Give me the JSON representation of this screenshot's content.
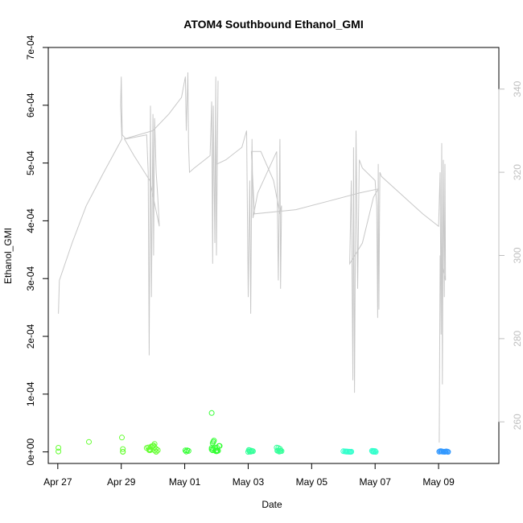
{
  "chart_data": {
    "type": "scatter",
    "title": "ATOM4 Southbound Ethanol_GMI",
    "xlabel": "Date",
    "ylabel": "Ethanol_GMI",
    "xlim": [
      -0.3,
      13.9
    ],
    "ylim": [
      -2e-05,
      0.0007
    ],
    "y2lim": [
      250,
      350
    ],
    "x_origin_label": "Apr 27",
    "x_ticks": [
      {
        "x": 0,
        "label": "Apr 27"
      },
      {
        "x": 2,
        "label": "Apr 29"
      },
      {
        "x": 4,
        "label": "May 01"
      },
      {
        "x": 6,
        "label": "May 03"
      },
      {
        "x": 8,
        "label": "May 05"
      },
      {
        "x": 10,
        "label": "May 07"
      },
      {
        "x": 12,
        "label": "May 09"
      }
    ],
    "y_ticks": [
      {
        "y": 0,
        "label": "0e+00"
      },
      {
        "y": 0.0001,
        "label": "1e-04"
      },
      {
        "y": 0.0002,
        "label": "2e-04"
      },
      {
        "y": 0.0003,
        "label": "3e-04"
      },
      {
        "y": 0.0004,
        "label": "4e-04"
      },
      {
        "y": 0.0005,
        "label": "5e-04"
      },
      {
        "y": 0.0006,
        "label": "6e-04"
      },
      {
        "y": 0.0007,
        "label": "7e-04"
      }
    ],
    "y2_ticks": [
      {
        "y": 260,
        "label": "260"
      },
      {
        "y": 280,
        "label": "280"
      },
      {
        "y": 300,
        "label": "300"
      },
      {
        "y": 320,
        "label": "320"
      },
      {
        "y": 340,
        "label": "340"
      }
    ],
    "series": [
      {
        "color": "#c8c8c8",
        "type": "line",
        "axis": "right",
        "points": [
          [
            0.02,
            286
          ],
          [
            0.05,
            294
          ],
          [
            0.45,
            303
          ],
          [
            0.9,
            312
          ],
          [
            1.45,
            320
          ],
          [
            2.02,
            328
          ],
          [
            1.98,
            336
          ],
          [
            2.0,
            343
          ],
          [
            2.03,
            329
          ],
          [
            2.15,
            328
          ],
          [
            2.8,
            329
          ],
          [
            2.85,
            320
          ],
          [
            2.88,
            276
          ],
          [
            2.92,
            336
          ],
          [
            2.95,
            290
          ],
          [
            3.0,
            334
          ],
          [
            3.02,
            300
          ],
          [
            3.05,
            333
          ],
          [
            3.1,
            320
          ],
          [
            3.15,
            314
          ],
          [
            3.2,
            307
          ],
          [
            2.9,
            318
          ],
          [
            2.4,
            324
          ],
          [
            2.1,
            328
          ],
          [
            3.0,
            330
          ],
          [
            3.5,
            334
          ],
          [
            3.9,
            338
          ],
          [
            4.02,
            343
          ],
          [
            4.05,
            330
          ],
          [
            4.1,
            344
          ],
          [
            4.12,
            327
          ],
          [
            4.15,
            320
          ],
          [
            4.3,
            321
          ],
          [
            4.8,
            324
          ],
          [
            4.85,
            337
          ],
          [
            4.88,
            298
          ],
          [
            4.9,
            336
          ],
          [
            4.95,
            303
          ],
          [
            4.98,
            343
          ],
          [
            5.0,
            300
          ],
          [
            5.05,
            342
          ],
          [
            5.02,
            322
          ],
          [
            5.3,
            323
          ],
          [
            5.8,
            326
          ],
          [
            5.95,
            330
          ],
          [
            6.0,
            290
          ],
          [
            6.05,
            318
          ],
          [
            6.08,
            286
          ],
          [
            6.12,
            328
          ],
          [
            6.15,
            309
          ],
          [
            6.3,
            315
          ],
          [
            6.6,
            320
          ],
          [
            6.9,
            325
          ],
          [
            6.95,
            294
          ],
          [
            7.0,
            328
          ],
          [
            7.02,
            292
          ],
          [
            7.05,
            312
          ],
          [
            7.0,
            310
          ],
          [
            6.8,
            318
          ],
          [
            6.4,
            325
          ],
          [
            6.1,
            325
          ],
          [
            6.2,
            310
          ],
          [
            7.5,
            311
          ],
          [
            8.5,
            313
          ],
          [
            9.5,
            315
          ],
          [
            10.1,
            316
          ],
          [
            9.95,
            314
          ],
          [
            9.6,
            303
          ],
          [
            9.2,
            298
          ],
          [
            9.25,
            318
          ],
          [
            9.3,
            270
          ],
          [
            9.32,
            326
          ],
          [
            9.35,
            267
          ],
          [
            9.4,
            330
          ],
          [
            9.45,
            292
          ],
          [
            9.5,
            323
          ],
          [
            9.6,
            321
          ],
          [
            10.0,
            318
          ],
          [
            10.05,
            312
          ],
          [
            10.08,
            285
          ],
          [
            10.1,
            322
          ],
          [
            10.12,
            287
          ],
          [
            10.15,
            320
          ],
          [
            10.2,
            319
          ],
          [
            11.5,
            310
          ],
          [
            12.0,
            307
          ],
          [
            12.05,
            320
          ],
          [
            12.08,
            281
          ],
          [
            12.1,
            327
          ],
          [
            12.12,
            269
          ],
          [
            12.15,
            323
          ],
          [
            12.18,
            290
          ],
          [
            12.2,
            322
          ],
          [
            12.22,
            294
          ],
          [
            12.05,
            300
          ],
          [
            12.02,
            255
          ]
        ]
      },
      {
        "color": "#66ff33",
        "type": "points",
        "points": [
          [
            0.02,
            7.1e-06
          ],
          [
            0.02,
            7e-07
          ],
          [
            0.98,
            1.73e-05
          ],
          [
            2.02,
            2.49e-05
          ],
          [
            2.05,
            4.9e-06
          ],
          [
            2.05,
            3e-07
          ],
          [
            2.05,
            2e-07
          ],
          [
            2.8,
            6.7e-06
          ],
          [
            2.85,
            7.7e-06
          ],
          [
            2.88,
            4.7e-06
          ],
          [
            2.88,
            3.1e-06
          ],
          [
            2.9,
            3e-06
          ],
          [
            2.9,
            2.8e-06
          ],
          [
            2.92,
            3.2e-06
          ],
          [
            2.95,
            8.3e-06
          ],
          [
            2.95,
            9.7e-06
          ],
          [
            3.0,
            1.05e-05
          ],
          [
            3.02,
            1.1e-05
          ],
          [
            3.05,
            1.38e-05
          ],
          [
            3.05,
            8e-06
          ],
          [
            3.1,
            5e-06
          ],
          [
            3.15,
            3e-06
          ],
          [
            3.05,
            2.5e-06
          ],
          [
            3.1,
            6e-07
          ],
          [
            3.1,
            2e-07
          ]
        ]
      },
      {
        "color": "#33ff33",
        "type": "points",
        "points": [
          [
            4.02,
            2.5e-06
          ],
          [
            4.08,
            2.7e-06
          ],
          [
            4.12,
            1.7e-06
          ],
          [
            4.05,
            6e-07
          ],
          [
            4.85,
            4.3e-06
          ],
          [
            4.85,
            6.9e-06
          ],
          [
            4.88,
            2.8e-06
          ],
          [
            4.9,
            6e-06
          ],
          [
            4.9,
            1.75e-05
          ],
          [
            4.92,
            1.95e-05
          ],
          [
            4.95,
            7.5e-06
          ],
          [
            5.0,
            1e-06
          ],
          [
            5.02,
            7e-06
          ],
          [
            5.02,
            2.5e-06
          ],
          [
            5.05,
            2e-06
          ],
          [
            5.08,
            1.04e-05
          ],
          [
            5.1,
            1.03e-05
          ],
          [
            4.98,
            1.5e-06
          ],
          [
            5.02,
            1.6e-06
          ],
          [
            4.88,
            1.5e-05
          ],
          [
            4.85,
            6.73e-05
          ]
        ]
      },
      {
        "color": "#33ff99",
        "type": "points",
        "points": [
          [
            6.02,
            3.2e-06
          ],
          [
            6.05,
            2.8e-06
          ],
          [
            6.1,
            2.2e-06
          ],
          [
            6.12,
            1.5e-06
          ],
          [
            6.15,
            1.2e-06
          ],
          [
            6.05,
            5e-07
          ],
          [
            6.08,
            3e-07
          ],
          [
            6.0,
            1e-07
          ],
          [
            6.9,
            7.5e-06
          ],
          [
            6.95,
            6.8e-06
          ],
          [
            7.0,
            5.2e-06
          ],
          [
            6.92,
            2.1e-06
          ],
          [
            6.95,
            1.8e-06
          ],
          [
            7.0,
            1.7e-06
          ],
          [
            7.02,
            1.9e-06
          ],
          [
            7.05,
            1.5e-06
          ],
          [
            6.98,
            5e-07
          ]
        ]
      },
      {
        "color": "#33ffcc",
        "type": "points",
        "points": [
          [
            9.0,
            1.2e-06
          ],
          [
            9.05,
            9e-07
          ],
          [
            9.08,
            5e-07
          ],
          [
            9.1,
            8e-07
          ],
          [
            9.12,
            3e-07
          ],
          [
            9.15,
            6e-07
          ],
          [
            9.18,
            2e-07
          ],
          [
            9.2,
            4e-07
          ],
          [
            9.22,
            1e-07
          ],
          [
            9.25,
            3e-07
          ],
          [
            9.9,
            1.8e-06
          ],
          [
            9.95,
            1.7e-06
          ],
          [
            10.0,
            1.4e-06
          ],
          [
            9.92,
            6e-07
          ],
          [
            9.95,
            4e-07
          ],
          [
            9.97,
            2e-07
          ],
          [
            10.02,
            1e-07
          ]
        ]
      },
      {
        "color": "#3399ff",
        "type": "points",
        "points": [
          [
            12.05,
            1.3e-06
          ],
          [
            12.08,
            1.1e-06
          ],
          [
            12.1,
            8e-07
          ],
          [
            12.12,
            5e-07
          ],
          [
            12.15,
            4e-07
          ],
          [
            12.18,
            3e-07
          ],
          [
            12.2,
            2e-07
          ],
          [
            12.22,
            6e-07
          ],
          [
            12.25,
            9e-07
          ],
          [
            12.28,
            4e-07
          ],
          [
            12.3,
            1e-07
          ],
          [
            12.02,
            3e-07
          ]
        ]
      }
    ]
  }
}
